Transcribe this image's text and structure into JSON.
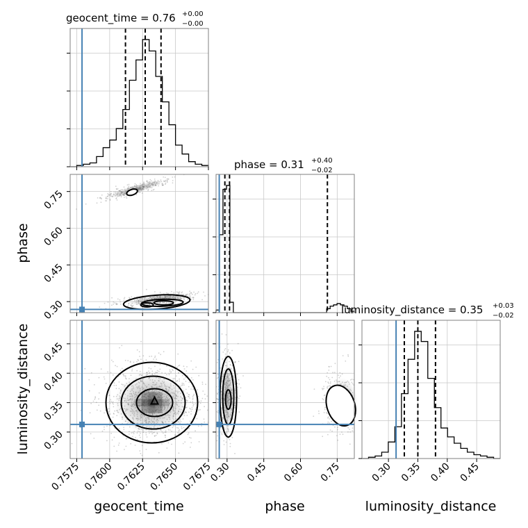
{
  "chart_data": {
    "type": "corner",
    "parameters": [
      "geocent_time",
      "phase",
      "luminosity_distance"
    ],
    "truth_color": "#4682b4",
    "truths": {
      "geocent_time": 0.7579,
      "phase": 0.268,
      "luminosity_distance": 0.313
    },
    "ranges": {
      "geocent_time": [
        0.757,
        0.7675
      ],
      "phase": [
        0.255,
        0.82
      ],
      "luminosity_distance": [
        0.255,
        0.49
      ]
    },
    "ticks": {
      "geocent_time": [
        {
          "v": 0.7575,
          "label": "0.7575"
        },
        {
          "v": 0.76,
          "label": "0.7600"
        },
        {
          "v": 0.7625,
          "label": "0.7625"
        },
        {
          "v": 0.765,
          "label": "0.7650"
        },
        {
          "v": 0.7675,
          "label": "0.7675"
        }
      ],
      "phase": [
        {
          "v": 0.3,
          "label": "0.30"
        },
        {
          "v": 0.45,
          "label": "0.45"
        },
        {
          "v": 0.6,
          "label": "0.60"
        },
        {
          "v": 0.75,
          "label": "0.75"
        }
      ],
      "luminosity_distance": [
        {
          "v": 0.3,
          "label": "0.30"
        },
        {
          "v": 0.35,
          "label": "0.35"
        },
        {
          "v": 0.4,
          "label": "0.40"
        },
        {
          "v": 0.45,
          "label": "0.45"
        }
      ]
    },
    "axis_labels": {
      "geocent_time": "geocent_time",
      "phase": "phase",
      "luminosity_distance": "luminosity_distance"
    },
    "titles": [
      {
        "param": "geocent_time",
        "text": "geocent_time = 0.76",
        "plus": "+0.00",
        "minus": "−0.00"
      },
      {
        "param": "phase",
        "text": "phase = 0.31",
        "plus": "+0.40",
        "minus": "−0.02"
      },
      {
        "param": "luminosity_distance",
        "text": "luminosity_distance = 0.35",
        "plus": "+0.03",
        "minus": "−0.02"
      }
    ],
    "quantiles": {
      "geocent_time": [
        0.7612,
        0.7627,
        0.7639
      ],
      "phase": [
        0.291,
        0.31,
        0.71
      ],
      "luminosity_distance": [
        0.327,
        0.35,
        0.38
      ]
    },
    "histograms": {
      "geocent_time": {
        "edges_range": [
          0.757,
          0.7675
        ],
        "counts": [
          0,
          1,
          2,
          3,
          8,
          15,
          21,
          30,
          45,
          68,
          84,
          100,
          91,
          71,
          51,
          33,
          17,
          10,
          4,
          2,
          1
        ]
      },
      "phase": {
        "edges_range": [
          0.255,
          0.82
        ],
        "counts": [
          2,
          60,
          95,
          98,
          8,
          0,
          0,
          0,
          0,
          0,
          0,
          0,
          0,
          0,
          0,
          0,
          0,
          0,
          0,
          0,
          0,
          0,
          0,
          0,
          0,
          0,
          0,
          0,
          0,
          0,
          0,
          0,
          3,
          5,
          6,
          7,
          6,
          5,
          3,
          1
        ]
      },
      "luminosity_distance": {
        "edges_range": [
          0.255,
          0.49
        ],
        "counts": [
          0,
          1,
          2,
          5,
          13,
          25,
          51,
          78,
          100,
          92,
          63,
          40,
          24,
          17,
          12,
          8,
          5,
          3,
          2,
          1,
          0
        ]
      }
    },
    "grid": true
  }
}
